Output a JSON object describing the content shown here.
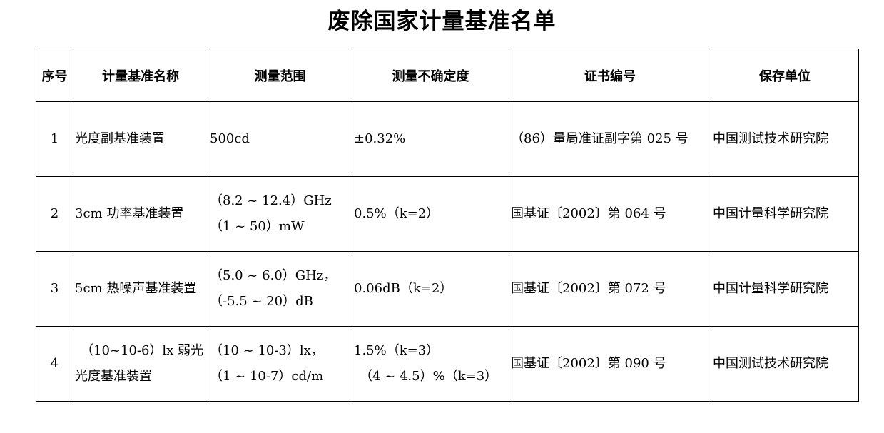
{
  "title": "废除国家计量基准名单",
  "table": {
    "headers": [
      "序号",
      "计量基准名称",
      "测量范围",
      "测量不确定度",
      "证书编号",
      "保存单位"
    ],
    "rows": [
      {
        "no": "1",
        "name_lines": [
          "光度副基准装置"
        ],
        "range_lines": [
          "500cd"
        ],
        "uncertainty_lines": [
          "±0.32%"
        ],
        "cert": "（86）量局准证副字第 025 号",
        "unit": "中国测试技术研究院"
      },
      {
        "no": "2",
        "name_lines": [
          "3cm 功率基准装置"
        ],
        "range_lines": [
          "（8.2 ~ 12.4）GHz",
          "（1 ~ 50）mW"
        ],
        "uncertainty_lines": [
          "0.5%（k=2）"
        ],
        "cert": "国基证〔2002〕第 064 号",
        "unit": "中国计量科学研究院"
      },
      {
        "no": "3",
        "name_lines": [
          "5cm 热噪声基准装置"
        ],
        "range_lines": [
          "（5.0 ~ 6.0）GHz，",
          "（-5.5 ~ 20）dB"
        ],
        "uncertainty_lines": [
          "0.06dB（k=2）"
        ],
        "cert": "国基证〔2002〕第 072 号",
        "unit": "中国计量科学研究院"
      },
      {
        "no": "4",
        "name_lines": [
          "（10~10-6）lx 弱光",
          "光度基准装置"
        ],
        "range_lines": [
          "（10 ~ 10-3）lx，",
          "（1 ~ 10-7）cd/m"
        ],
        "uncertainty_lines": [
          "1.5%（k=3）",
          "（4 ~ 4.5）%（k=3）"
        ],
        "cert": "国基证〔2002〕第 090 号",
        "unit": "中国测试技术研究院"
      }
    ]
  }
}
